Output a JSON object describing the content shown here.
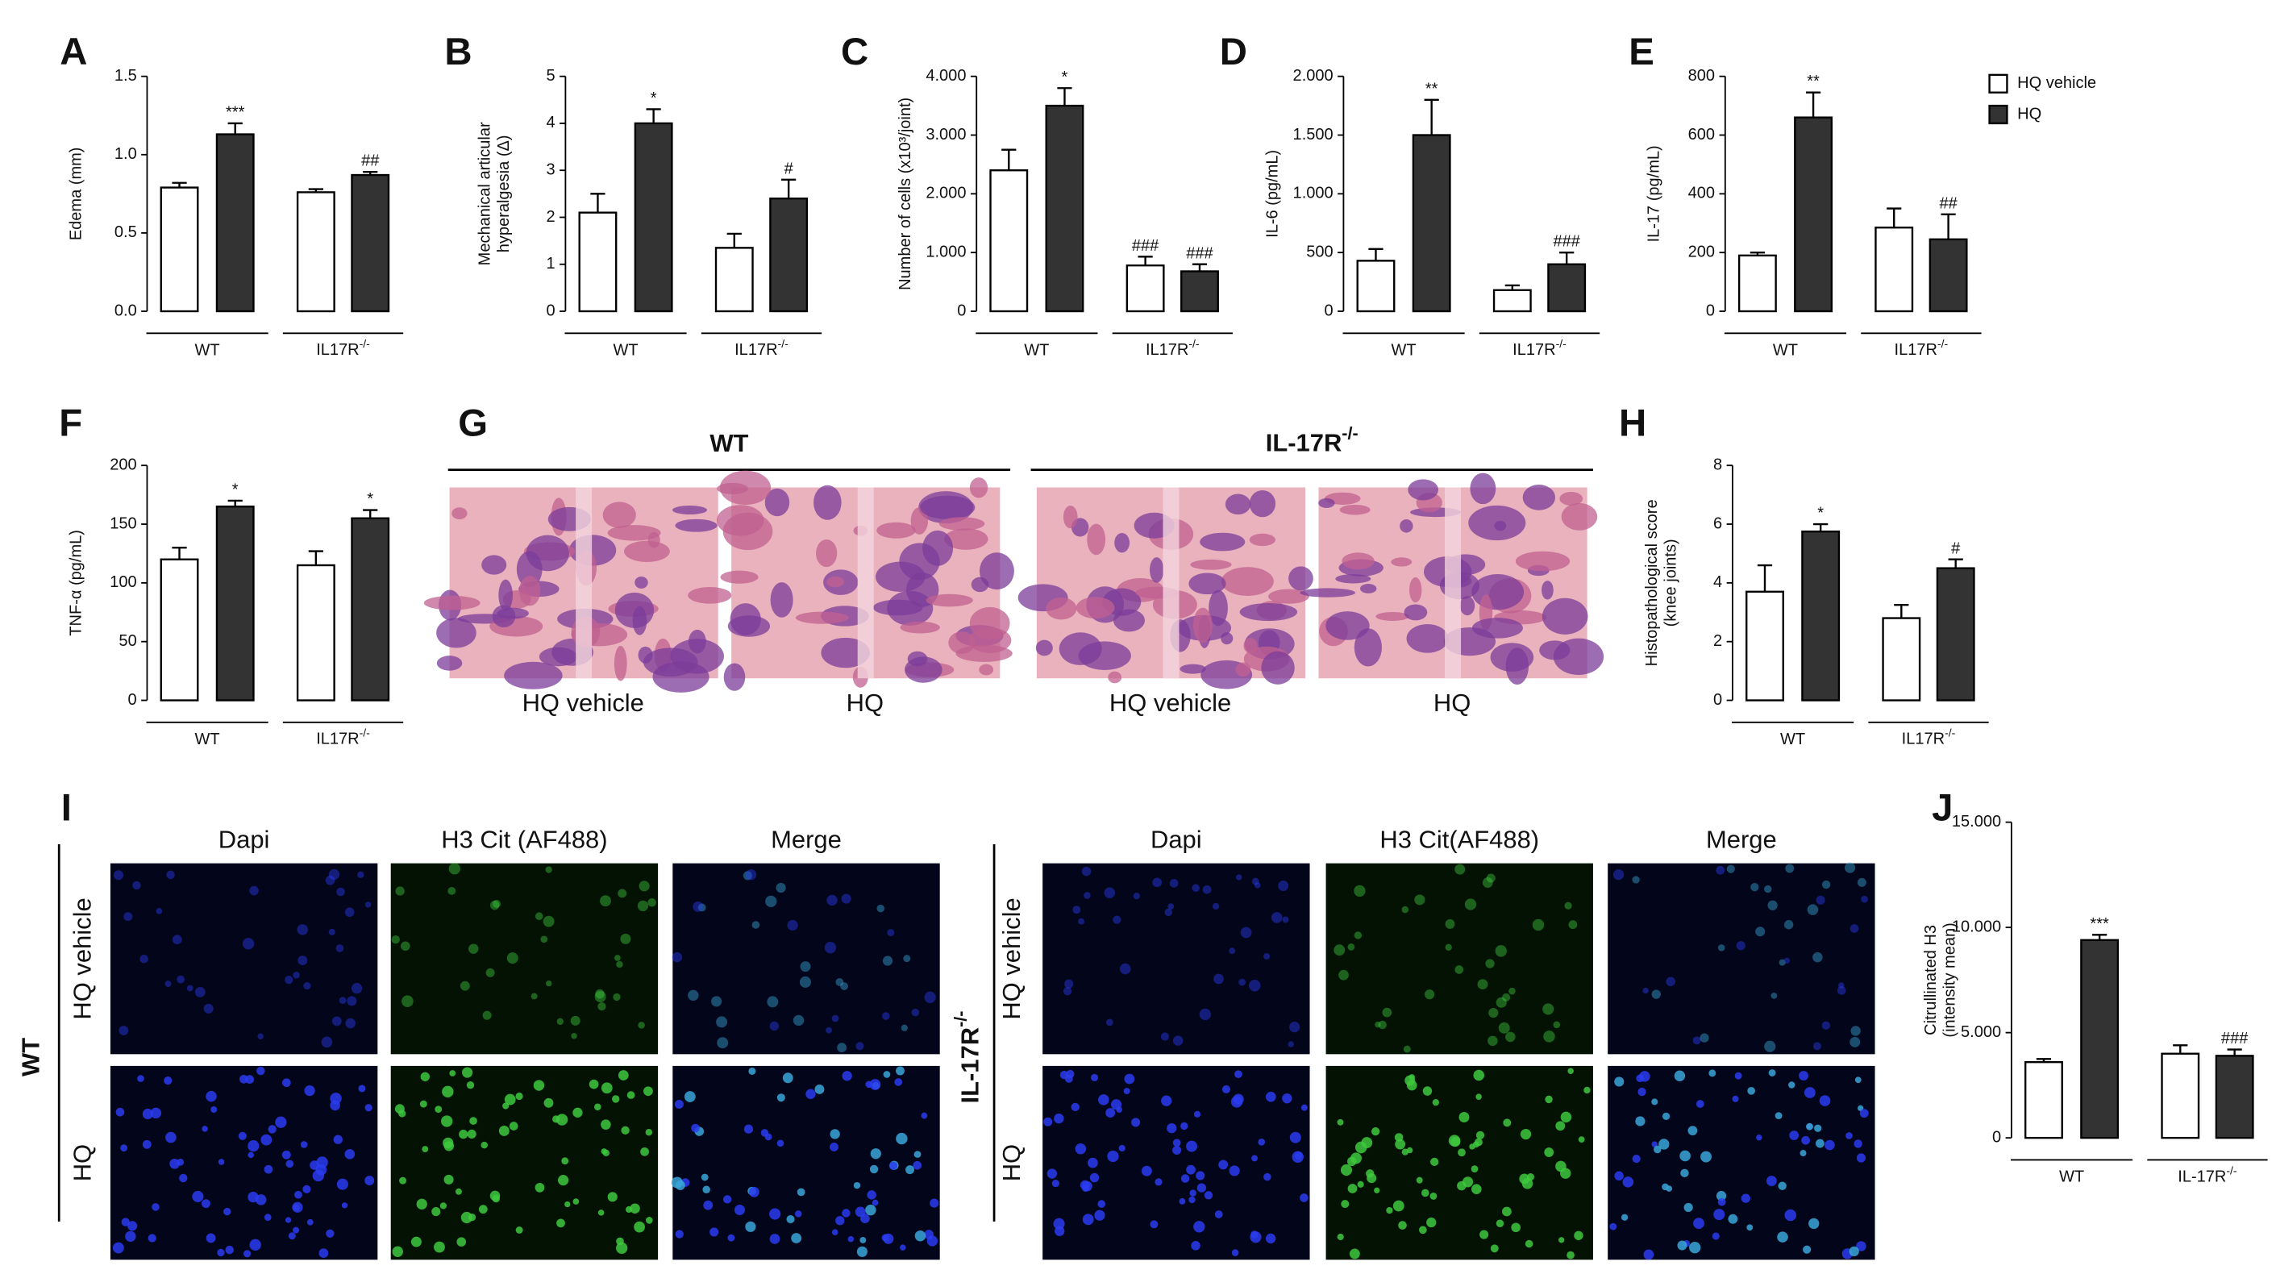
{
  "chart_data": [
    {
      "type": "bar",
      "panel": "A",
      "ylabel": [
        "Edema (mm)"
      ],
      "categories": [
        "WT",
        "IL17R-/-"
      ],
      "series": [
        {
          "name": "HQ vehicle",
          "color": "#ffffff",
          "values": [
            0.79,
            0.76
          ],
          "errors": [
            0.03,
            0.02
          ],
          "annotations": [
            null,
            null
          ]
        },
        {
          "name": "HQ",
          "color": "#333333",
          "values": [
            1.13,
            0.87
          ],
          "errors": [
            0.07,
            0.02
          ],
          "annotations": [
            "***",
            "##"
          ]
        }
      ],
      "ylim": [
        0,
        1.5
      ],
      "yticks": [
        {
          "value": 0,
          "label": "0.0"
        },
        {
          "value": 0.5,
          "label": "0.5"
        },
        {
          "value": 1,
          "label": "1.0"
        },
        {
          "value": 1.5,
          "label": "1.5"
        }
      ]
    },
    {
      "type": "bar",
      "panel": "B",
      "ylabel": [
        "Mechanical articular",
        "hyperalgesia (Δ)"
      ],
      "categories": [
        "WT",
        "IL17R-/-"
      ],
      "series": [
        {
          "name": "HQ vehicle",
          "color": "#ffffff",
          "values": [
            2.1,
            1.35
          ],
          "errors": [
            0.4,
            0.3
          ],
          "annotations": [
            null,
            null
          ]
        },
        {
          "name": "HQ",
          "color": "#333333",
          "values": [
            4.0,
            2.4
          ],
          "errors": [
            0.3,
            0.4
          ],
          "annotations": [
            "*",
            "#"
          ]
        }
      ],
      "ylim": [
        0,
        5
      ],
      "yticks": [
        0,
        1,
        2,
        3,
        4,
        5
      ]
    },
    {
      "type": "bar",
      "panel": "C",
      "ylabel": [
        "Number of cells (x10³/joint)"
      ],
      "categories": [
        "WT",
        "IL17R-/-"
      ],
      "series": [
        {
          "name": "HQ vehicle",
          "color": "#ffffff",
          "values": [
            2400,
            780
          ],
          "errors": [
            350,
            150
          ],
          "annotations": [
            null,
            "###"
          ]
        },
        {
          "name": "HQ",
          "color": "#333333",
          "values": [
            3500,
            680
          ],
          "errors": [
            300,
            120
          ],
          "annotations": [
            "*",
            "###"
          ]
        }
      ],
      "ylim": [
        0,
        4000
      ],
      "yticks": [
        0,
        {
          "value": 1000,
          "label": "1.000"
        },
        {
          "value": 2000,
          "label": "2.000"
        },
        {
          "value": 3000,
          "label": "3.000"
        },
        {
          "value": 4000,
          "label": "4.000"
        }
      ]
    },
    {
      "type": "bar",
      "panel": "D",
      "ylabel": [
        "IL-6 (pg/mL)"
      ],
      "categories": [
        "WT",
        "IL17R-/-"
      ],
      "series": [
        {
          "name": "HQ vehicle",
          "color": "#ffffff",
          "values": [
            430,
            180
          ],
          "errors": [
            100,
            40
          ],
          "annotations": [
            null,
            null
          ]
        },
        {
          "name": "HQ",
          "color": "#333333",
          "values": [
            1500,
            400
          ],
          "errors": [
            300,
            100
          ],
          "annotations": [
            "**",
            "###"
          ]
        }
      ],
      "ylim": [
        0,
        2000
      ],
      "yticks": [
        0,
        500,
        {
          "value": 1000,
          "label": "1.000"
        },
        {
          "value": 1500,
          "label": "1.500"
        },
        {
          "value": 2000,
          "label": "2.000"
        }
      ]
    },
    {
      "type": "bar",
      "panel": "E",
      "ylabel": [
        "IL-17 (pg/mL)"
      ],
      "categories": [
        "WT",
        "IL17R-/-"
      ],
      "series": [
        {
          "name": "HQ vehicle",
          "color": "#ffffff",
          "values": [
            190,
            285
          ],
          "errors": [
            10,
            65
          ],
          "annotations": [
            null,
            null
          ]
        },
        {
          "name": "HQ",
          "color": "#333333",
          "values": [
            660,
            245
          ],
          "errors": [
            85,
            85
          ],
          "annotations": [
            "**",
            "##"
          ]
        }
      ],
      "ylim": [
        0,
        800
      ],
      "yticks": [
        0,
        200,
        400,
        600,
        800
      ]
    },
    {
      "type": "bar",
      "panel": "F",
      "ylabel": [
        "TNF-α (pg/mL)"
      ],
      "categories": [
        "WT",
        "IL17R-/-"
      ],
      "series": [
        {
          "name": "HQ vehicle",
          "color": "#ffffff",
          "values": [
            120,
            115
          ],
          "errors": [
            10,
            12
          ],
          "annotations": [
            null,
            null
          ]
        },
        {
          "name": "HQ",
          "color": "#333333",
          "values": [
            165,
            155
          ],
          "errors": [
            5,
            7
          ],
          "annotations": [
            "*",
            "*"
          ]
        }
      ],
      "ylim": [
        0,
        200
      ],
      "yticks": [
        0,
        50,
        100,
        150,
        200
      ]
    },
    {
      "type": "bar",
      "panel": "H",
      "ylabel": [
        "Histopathological score",
        "(knee joints)"
      ],
      "categories": [
        "WT",
        "IL17R-/-"
      ],
      "series": [
        {
          "name": "HQ vehicle",
          "color": "#ffffff",
          "values": [
            3.7,
            2.8
          ],
          "errors": [
            0.9,
            0.45
          ],
          "annotations": [
            null,
            null
          ]
        },
        {
          "name": "HQ",
          "color": "#333333",
          "values": [
            5.75,
            4.5
          ],
          "errors": [
            0.25,
            0.3
          ],
          "annotations": [
            "*",
            "#"
          ]
        }
      ],
      "ylim": [
        0,
        8
      ],
      "yticks": [
        0,
        2,
        4,
        6,
        8
      ]
    },
    {
      "type": "bar",
      "panel": "J",
      "ylabel": [
        "Citrullinated H3",
        "(intensity mean)"
      ],
      "categories": [
        "WT",
        "IL-17R-/-"
      ],
      "series": [
        {
          "name": "HQ vehicle",
          "color": "#ffffff",
          "values": [
            3600,
            4000
          ],
          "errors": [
            150,
            400
          ],
          "annotations": [
            null,
            null
          ]
        },
        {
          "name": "HQ",
          "color": "#333333",
          "values": [
            9400,
            3900
          ],
          "errors": [
            250,
            300
          ],
          "annotations": [
            "***",
            "###"
          ]
        }
      ],
      "ylim": [
        0,
        15000
      ],
      "yticks": [
        0,
        {
          "value": 5000,
          "label": "5.000"
        },
        {
          "value": 10000,
          "label": "10.000"
        },
        {
          "value": 15000,
          "label": "15.000"
        }
      ]
    }
  ],
  "panel_g": {
    "label": "G",
    "groups": [
      "WT",
      "IL-17R-/-"
    ],
    "columns": [
      "HQ vehicle",
      "HQ",
      "HQ vehicle",
      "HQ"
    ]
  },
  "panel_i": {
    "label": "I",
    "groups": [
      "WT",
      "IL-17R-/-"
    ],
    "rows": [
      "HQ vehicle",
      "HQ"
    ],
    "columns_left": [
      "Dapi",
      "H3 Cit (AF488)",
      "Merge"
    ],
    "columns_right": [
      "Dapi",
      "H3 Cit(AF488)",
      "Merge"
    ]
  }
}
